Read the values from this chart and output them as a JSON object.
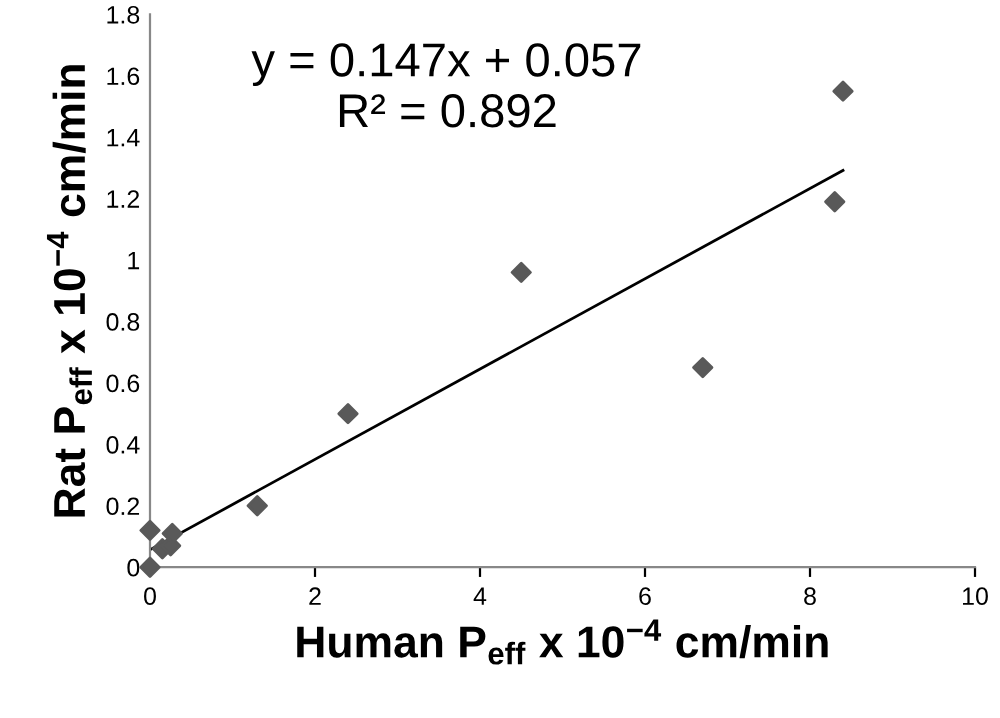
{
  "chart_data": {
    "type": "scatter",
    "xlabel": "Human P$_{eff}$ x 10$^{−4}$ cm/min",
    "ylabel": "Rat P$_{eff}$ x 10$^{−4}$ cm/min",
    "annotations": [
      "y = 0.147x + 0.057\nR² = 0.892"
    ],
    "series": [
      {
        "color": "#595959",
        "marker": "diamond",
        "x": [
          0,
          0,
          0.15,
          0.25,
          0.27,
          1.3,
          2.4,
          4.5,
          6.7,
          8.3,
          8.4
        ],
        "values": [
          0,
          0.12,
          0.06,
          0.07,
          0.11,
          0.2,
          0.5,
          0.96,
          0.65,
          1.19,
          1.55
        ]
      },
      {
        "type": "line",
        "color": "#000000",
        "marker": "none",
        "x": [
          0,
          8.4
        ],
        "values": [
          0.057,
          1.292
        ]
      }
    ],
    "xlim": [
      0,
      10
    ],
    "xticks": [
      0,
      2,
      4,
      6,
      8,
      10
    ],
    "ylim": [
      0,
      1.8
    ],
    "yticks": [
      0,
      0.2,
      0.4,
      0.6,
      0.8,
      1,
      1.2,
      1.4,
      1.6,
      1.8
    ],
    "grid": false,
    "legend": false
  }
}
